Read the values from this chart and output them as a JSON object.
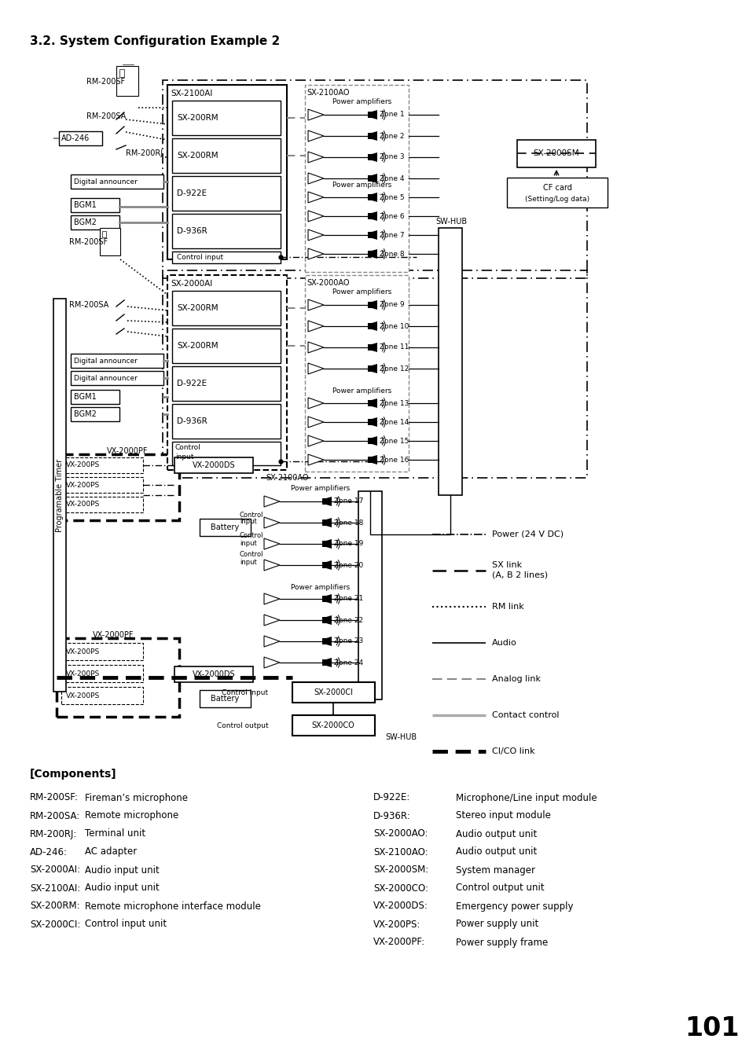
{
  "title": "3.2. System Configuration Example 2",
  "page_number": "101",
  "components_left": [
    [
      "RM-200SF:",
      "Fireman’s microphone"
    ],
    [
      "RM-200SA:",
      "Remote microphone"
    ],
    [
      "RM-200RJ:",
      "Terminal unit"
    ],
    [
      "AD-246:",
      "AC adapter"
    ],
    [
      "SX-2000AI:",
      "Audio input unit"
    ],
    [
      "SX-2100AI:",
      "Audio input unit"
    ],
    [
      "SX-200RM:",
      "Remote microphone interface module"
    ],
    [
      "SX-2000CI:",
      "Control input unit"
    ]
  ],
  "components_right": [
    [
      "D-922E:",
      "Microphone/Line input module"
    ],
    [
      "D-936R:",
      "Stereo input module"
    ],
    [
      "SX-2000AO:",
      "Audio output unit"
    ],
    [
      "SX-2100AO:",
      "Audio output unit"
    ],
    [
      "SX-2000SM:",
      "System manager"
    ],
    [
      "SX-2000CO:",
      "Control output unit"
    ],
    [
      "VX-2000DS:",
      "Emergency power supply"
    ],
    [
      "VX-200PS:",
      "Power supply unit"
    ],
    [
      "VX-2000PF:",
      "Power supply frame"
    ]
  ]
}
